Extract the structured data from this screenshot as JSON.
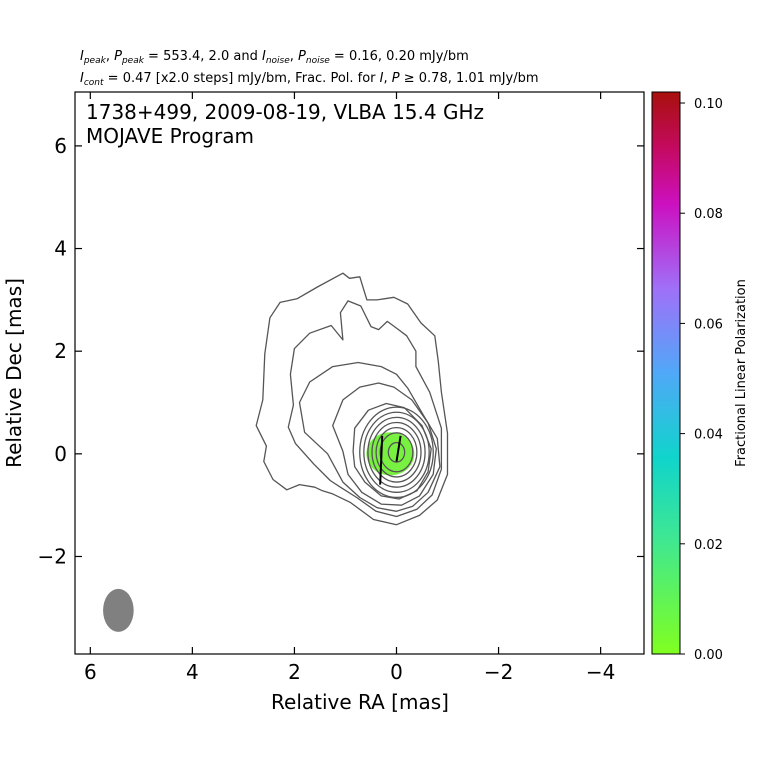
{
  "header": {
    "line1": [
      {
        "t": "I",
        "it": true
      },
      {
        "t": "peak",
        "sub": true
      },
      {
        "t": ", "
      },
      {
        "t": "P",
        "it": true
      },
      {
        "t": "peak",
        "sub": true
      },
      {
        "t": " = 553.4, 2.0 and "
      },
      {
        "t": "I",
        "it": true
      },
      {
        "t": "noise",
        "sub": true
      },
      {
        "t": ", "
      },
      {
        "t": "P",
        "it": true
      },
      {
        "t": "noise",
        "sub": true
      },
      {
        "t": " = 0.16, 0.20 mJy/bm"
      }
    ],
    "line2": [
      {
        "t": "I",
        "it": true
      },
      {
        "t": "cont",
        "sub": true
      },
      {
        "t": " = 0.47 [x2.0 steps] mJy/bm, Frac. Pol. for "
      },
      {
        "t": "I",
        "it": true
      },
      {
        "t": ", "
      },
      {
        "t": "P",
        "it": true
      },
      {
        "t": " ≥ 0.78, 1.01 mJy/bm"
      }
    ]
  },
  "chart_data": {
    "type": "contour",
    "title_line1": "1738+499, 2009-08-19, VLBA 15.4 GHz",
    "title_line2": "MOJAVE Program",
    "xlabel": "Relative RA [mas]",
    "ylabel": "Relative Dec [mas]",
    "xlim": [
      6.3,
      -4.85
    ],
    "ylim": [
      -3.9,
      7.05
    ],
    "xticks": [
      6,
      4,
      2,
      0,
      -2,
      -4
    ],
    "xtick_labels": [
      "6",
      "4",
      "2",
      "0",
      "−2",
      "−4"
    ],
    "yticks": [
      -2,
      0,
      2,
      4,
      6
    ],
    "ytick_labels": [
      "−2",
      "0",
      "2",
      "4",
      "6"
    ],
    "contour_color": "#555555",
    "contours": [
      [
        [
          2.55,
          0.15
        ],
        [
          2.75,
          0.55
        ],
        [
          2.62,
          1.05
        ],
        [
          2.58,
          1.95
        ],
        [
          2.48,
          2.65
        ],
        [
          2.28,
          2.95
        ],
        [
          1.95,
          3.02
        ],
        [
          1.55,
          3.25
        ],
        [
          1.05,
          3.52
        ],
        [
          0.92,
          3.42
        ],
        [
          0.72,
          3.45
        ],
        [
          0.58,
          3.0
        ],
        [
          0.38,
          3.0
        ],
        [
          0.05,
          3.05
        ],
        [
          -0.22,
          2.92
        ],
        [
          -0.48,
          2.55
        ],
        [
          -0.75,
          2.3
        ],
        [
          -0.82,
          1.8
        ],
        [
          -0.88,
          1.2
        ],
        [
          -1.0,
          0.4
        ],
        [
          -1.0,
          -0.4
        ],
        [
          -0.8,
          -0.9
        ],
        [
          -0.45,
          -1.2
        ],
        [
          0.0,
          -1.38
        ],
        [
          0.45,
          -1.28
        ],
        [
          0.9,
          -0.95
        ],
        [
          1.25,
          -0.78
        ],
        [
          1.45,
          -0.72
        ],
        [
          1.6,
          -0.65
        ],
        [
          1.9,
          -0.6
        ],
        [
          2.15,
          -0.7
        ],
        [
          2.42,
          -0.5
        ],
        [
          2.6,
          -0.15
        ],
        [
          2.55,
          0.15
        ]
      ],
      [
        [
          1.98,
          0.2
        ],
        [
          2.12,
          0.52
        ],
        [
          2.02,
          0.95
        ],
        [
          2.08,
          1.55
        ],
        [
          2.0,
          2.05
        ],
        [
          1.7,
          2.35
        ],
        [
          1.28,
          2.5
        ],
        [
          1.05,
          2.22
        ],
        [
          1.1,
          2.75
        ],
        [
          0.95,
          2.98
        ],
        [
          0.7,
          2.88
        ],
        [
          0.5,
          2.48
        ],
        [
          0.35,
          2.42
        ],
        [
          0.18,
          2.58
        ],
        [
          0.0,
          2.45
        ],
        [
          -0.2,
          2.3
        ],
        [
          -0.38,
          2.0
        ],
        [
          -0.38,
          1.7
        ],
        [
          -0.65,
          1.2
        ],
        [
          -0.88,
          0.5
        ],
        [
          -0.88,
          -0.3
        ],
        [
          -0.7,
          -0.8
        ],
        [
          -0.4,
          -1.08
        ],
        [
          0.0,
          -1.22
        ],
        [
          0.4,
          -1.12
        ],
        [
          0.78,
          -0.85
        ],
        [
          1.1,
          -0.65
        ],
        [
          1.3,
          -0.52
        ],
        [
          1.62,
          -0.2
        ],
        [
          1.98,
          0.2
        ]
      ],
      [
        [
          1.35,
          0.0
        ],
        [
          1.8,
          0.42
        ],
        [
          1.9,
          1.0
        ],
        [
          1.7,
          1.4
        ],
        [
          1.25,
          1.7
        ],
        [
          0.75,
          1.78
        ],
        [
          0.3,
          1.7
        ],
        [
          0.0,
          1.55
        ],
        [
          -0.22,
          1.28
        ],
        [
          -0.5,
          0.8
        ],
        [
          -0.8,
          0.3
        ],
        [
          -0.85,
          -0.25
        ],
        [
          -0.62,
          -0.75
        ],
        [
          -0.32,
          -1.02
        ],
        [
          0.0,
          -1.12
        ],
        [
          0.38,
          -1.05
        ],
        [
          0.72,
          -0.85
        ],
        [
          1.05,
          -0.55
        ],
        [
          1.35,
          0.0
        ]
      ],
      [
        [
          1.05,
          0.05
        ],
        [
          1.25,
          0.55
        ],
        [
          1.05,
          1.05
        ],
        [
          0.72,
          1.3
        ],
        [
          0.35,
          1.38
        ],
        [
          0.05,
          1.3
        ],
        [
          -0.3,
          1.05
        ],
        [
          -0.62,
          0.6
        ],
        [
          -0.78,
          0.1
        ],
        [
          -0.72,
          -0.4
        ],
        [
          -0.45,
          -0.82
        ],
        [
          -0.1,
          -1.0
        ],
        [
          0.3,
          -0.98
        ],
        [
          0.68,
          -0.75
        ],
        [
          0.95,
          -0.4
        ],
        [
          1.05,
          0.05
        ]
      ],
      [
        [
          0.85,
          0.05
        ],
        [
          0.82,
          0.5
        ],
        [
          0.55,
          0.85
        ],
        [
          0.2,
          0.98
        ],
        [
          -0.15,
          0.9
        ],
        [
          -0.5,
          0.55
        ],
        [
          -0.68,
          0.1
        ],
        [
          -0.62,
          -0.35
        ],
        [
          -0.4,
          -0.72
        ],
        [
          -0.05,
          -0.88
        ],
        [
          0.3,
          -0.82
        ],
        [
          0.62,
          -0.55
        ],
        [
          0.82,
          -0.25
        ],
        [
          0.85,
          0.05
        ]
      ]
    ],
    "ellipses": [
      [
        0.0,
        0.03,
        0.72,
        0.88
      ],
      [
        0.0,
        0.03,
        0.64,
        0.78
      ],
      [
        0.0,
        0.03,
        0.56,
        0.68
      ],
      [
        0.0,
        0.03,
        0.48,
        0.58
      ],
      [
        0.0,
        0.03,
        0.4,
        0.48
      ],
      [
        0.0,
        0.03,
        0.32,
        0.38
      ],
      [
        0.0,
        0.03,
        0.16,
        0.19
      ]
    ],
    "polarization_region": {
      "center": [
        0.12,
        0.0
      ],
      "ra_halfwidth": 0.47,
      "dec_halfwidth": 0.42,
      "fraction": 0.005,
      "color": "#79f141"
    },
    "evpa_sticks": [
      [
        [
          0.32,
          -0.6
        ],
        [
          0.28,
          0.35
        ]
      ],
      [
        [
          0.0,
          -0.15
        ],
        [
          -0.08,
          0.35
        ]
      ]
    ],
    "beam": {
      "center": [
        5.45,
        -3.05
      ],
      "ra_halfwidth": 0.3,
      "dec_halfwidth": 0.42,
      "color": "#808080"
    },
    "colorbar": {
      "label": "Fractional Linear Polarization",
      "range": [
        0.0,
        0.102
      ],
      "ticks": [
        0.0,
        0.02,
        0.04,
        0.06,
        0.08,
        0.1
      ],
      "tick_labels": [
        "0.00",
        "0.02",
        "0.04",
        "0.06",
        "0.08",
        "0.10"
      ],
      "colormap": [
        [
          0.0,
          "#80ff20"
        ],
        [
          0.2,
          "#40e890"
        ],
        [
          0.35,
          "#10d4cc"
        ],
        [
          0.5,
          "#50a8f8"
        ],
        [
          0.65,
          "#a070f8"
        ],
        [
          0.8,
          "#cc10c0"
        ],
        [
          0.9,
          "#c40a60"
        ],
        [
          1.0,
          "#a8100c"
        ]
      ]
    }
  }
}
